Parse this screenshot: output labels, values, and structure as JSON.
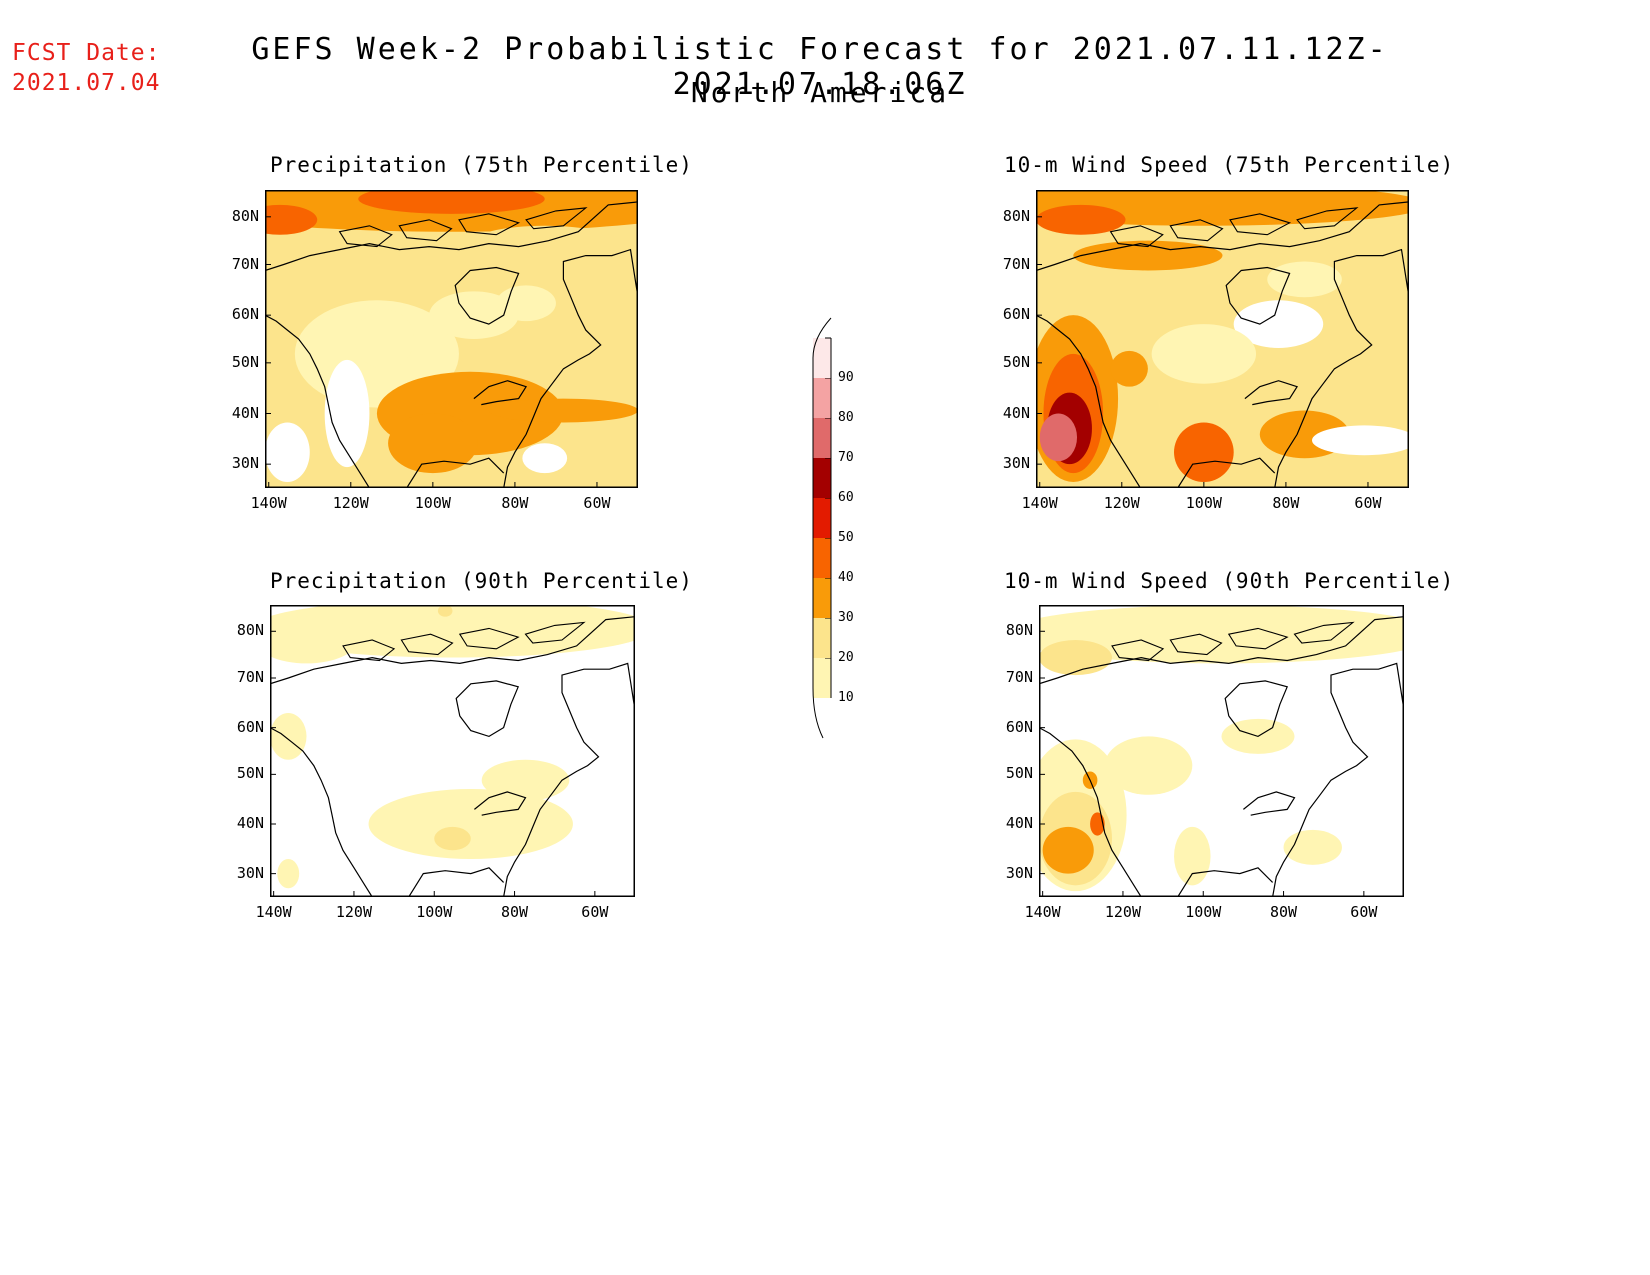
{
  "header": {
    "fcst_label": "FCST Date:",
    "fcst_date": "2021.07.04",
    "title": "GEFS Week-2 Probabilistic Forecast for 2021.07.11.12Z-2021.07.18.06Z",
    "subtitle": "North America"
  },
  "axes": {
    "lat_labels": [
      "80N",
      "70N",
      "60N",
      "50N",
      "40N",
      "30N"
    ],
    "lon_labels": [
      "140W",
      "120W",
      "100W",
      "80W",
      "60W"
    ]
  },
  "panels": [
    {
      "title": "Precipitation (75th Percentile)",
      "type": "precip75"
    },
    {
      "title": "10-m Wind Speed (75th Percentile)",
      "type": "wind75"
    },
    {
      "title": "Precipitation (90th Percentile)",
      "type": "precip90"
    },
    {
      "title": "10-m Wind Speed (90th Percentile)",
      "type": "wind90"
    }
  ],
  "colorbar": {
    "levels": [
      "10",
      "20",
      "30",
      "40",
      "50",
      "60",
      "70",
      "80",
      "90"
    ],
    "colors": [
      "#fff5b3",
      "#fce48c",
      "#f99b09",
      "#f86400",
      "#e31b00",
      "#a30000",
      "#e06a6a",
      "#f4a3a3",
      "#fde8e8"
    ]
  }
}
